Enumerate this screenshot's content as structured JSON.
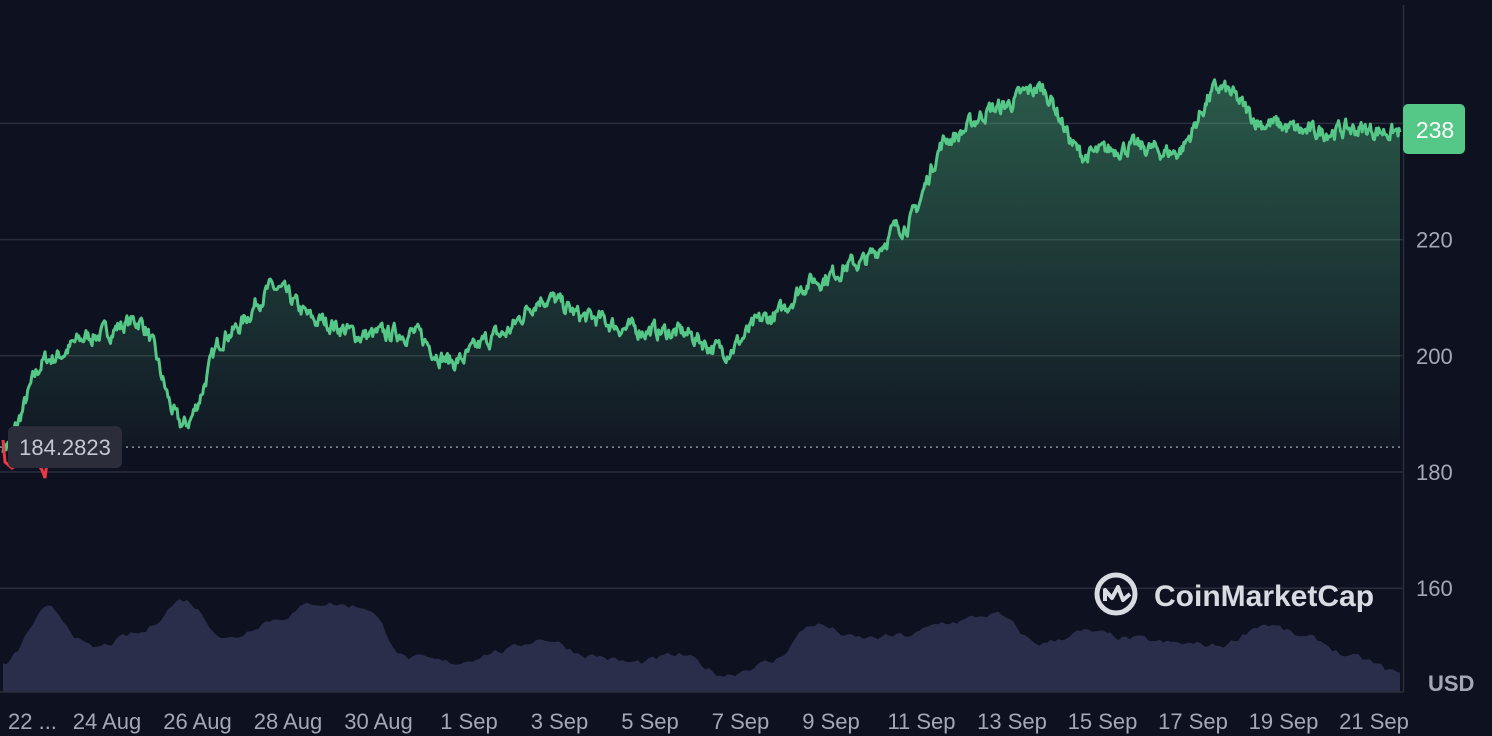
{
  "chart_data": {
    "type": "area",
    "currency_label": "USD",
    "watermark": "CoinMarketCap",
    "current_price_label": "238",
    "reference_price_label": "184.2823",
    "reference_price": 184.2823,
    "y_ticks": [
      "160",
      "180",
      "200",
      "220"
    ],
    "y_tick_values": [
      160,
      180,
      200,
      220
    ],
    "ylim": [
      148,
      262
    ],
    "grid": true,
    "x_ticks": [
      "22 ...",
      "24 Aug",
      "26 Aug",
      "28 Aug",
      "30 Aug",
      "1 Sep",
      "3 Sep",
      "5 Sep",
      "7 Sep",
      "9 Sep",
      "11 Sep",
      "13 Sep",
      "15 Sep",
      "17 Sep",
      "19 Sep",
      "21 Sep"
    ],
    "x": [
      "22 Aug",
      "23 Aug",
      "24 Aug",
      "25 Aug",
      "26 Aug",
      "27 Aug",
      "28 Aug",
      "29 Aug",
      "30 Aug",
      "31 Aug",
      "1 Sep",
      "2 Sep",
      "3 Sep",
      "4 Sep",
      "5 Sep",
      "6 Sep",
      "7 Sep",
      "8 Sep",
      "9 Sep",
      "10 Sep",
      "11 Sep",
      "12 Sep",
      "13 Sep",
      "14 Sep",
      "15 Sep",
      "16 Sep",
      "17 Sep",
      "18 Sep",
      "19 Sep",
      "20 Sep",
      "21 Sep",
      "22 Sep"
    ],
    "series": [
      {
        "values": [
          184.5,
          199.5,
          203.5,
          206.0,
          188.0,
          204.0,
          211.5,
          206.0,
          203.5,
          204.0,
          199.0,
          203.5,
          210.0,
          206.5,
          204.5,
          204.0,
          201.0,
          206.5,
          213.0,
          216.0,
          222.5,
          237.5,
          242.5,
          246.0,
          234.5,
          236.0,
          235.0,
          246.0,
          240.0,
          238.5,
          239.0,
          238.5
        ],
        "color": "#55c787"
      }
    ],
    "volume_relative": [
      0.28,
      0.85,
      0.45,
      0.6,
      0.95,
      0.55,
      0.75,
      0.92,
      0.88,
      0.35,
      0.3,
      0.42,
      0.55,
      0.38,
      0.3,
      0.38,
      0.18,
      0.3,
      0.7,
      0.55,
      0.58,
      0.72,
      0.8,
      0.5,
      0.62,
      0.55,
      0.5,
      0.48,
      0.7,
      0.55,
      0.35,
      0.2
    ],
    "colors": {
      "background": "#0e1120",
      "line_up": "#55c787",
      "line_down": "#ea3943",
      "volume": "#2a2e4a",
      "grid": "#2a2d3a",
      "label_bg": "#55c787",
      "ref_label_bg": "#2b2d3a",
      "text": "#a4a8b6"
    }
  }
}
